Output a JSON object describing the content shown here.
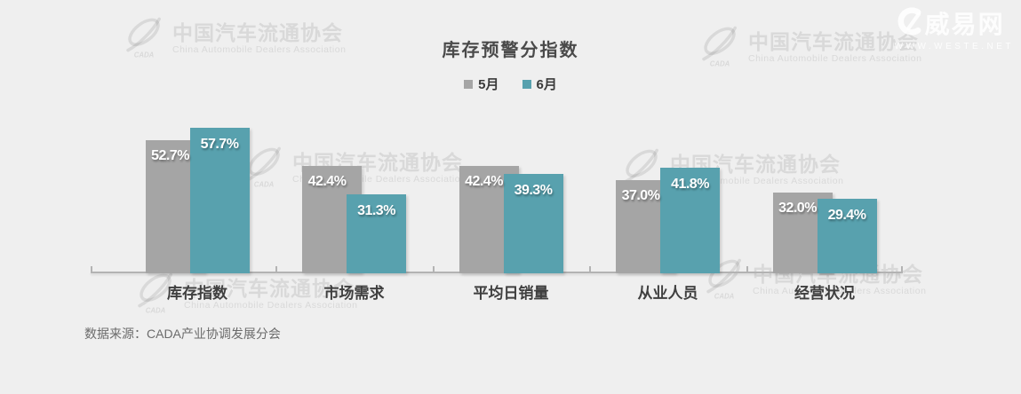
{
  "header": {
    "title": "库存预警分指数"
  },
  "chart_data": {
    "type": "bar",
    "title": "库存预警分指数",
    "categories": [
      "库存指数",
      "市场需求",
      "平均日销量",
      "从业人员",
      "经营状况"
    ],
    "series": [
      {
        "name": "5月",
        "color": "#a5a5a5",
        "values": [
          52.7,
          42.4,
          42.4,
          37.0,
          32.0
        ]
      },
      {
        "name": "6月",
        "color": "#58a1ae",
        "values": [
          57.7,
          31.3,
          39.3,
          41.8,
          29.4
        ]
      }
    ],
    "value_suffix": "%",
    "data_labels": "inside-top",
    "ylim": [
      0,
      60
    ],
    "grid": false,
    "legend_position": "top-center",
    "xlabel": "",
    "ylabel": ""
  },
  "footer": {
    "source": "数据来源：CADA产业协调发展分会"
  },
  "watermarks": {
    "cada_cn": "中国汽车流通协会",
    "cada_en": "China Automobile Dealers Association",
    "cada_logo_text": "CADA",
    "site_name": "威易网",
    "site_url": "WWW.WESTE.NET"
  },
  "colors": {
    "background": "#efefef",
    "axis": "#b3b3b3",
    "title_text": "#4a4a4a",
    "category_text": "#3f3f3f",
    "value_label_text": "#ffffff",
    "source_text": "#6b6b6b",
    "series_may": "#a5a5a5",
    "series_june": "#58a1ae"
  }
}
